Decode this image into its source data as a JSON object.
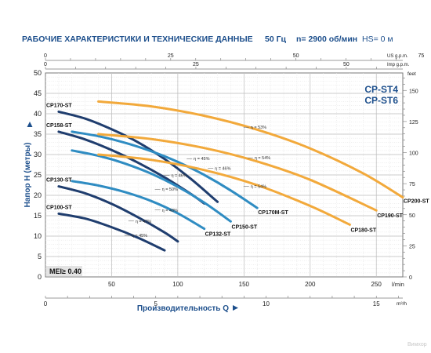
{
  "header": {
    "title": "РАБОЧИЕ ХАРАКТЕРИСТИКИ И ТЕХНИЧЕСКИЕ ДАННЫЕ",
    "frequency": "50 Гц",
    "speed": "n= 2900 об/мин",
    "hs": "HS= 0 м"
  },
  "watermark": "Вимхор",
  "chart_data": {
    "type": "line",
    "model_labels": [
      "CP-ST4",
      "CP-ST6"
    ],
    "xlabel": "Производительность Q",
    "ylabel": "Напор H (метры)",
    "xunit": "l/min",
    "xunit2": "m³/h",
    "ylabel_right": "feet",
    "top_unit_1": "US g.p.m.",
    "top_unit_2": "Imp g.p.m.",
    "mei": "MEI≥ 0.40",
    "xlim": [
      0,
      270
    ],
    "ylim": [
      0,
      50
    ],
    "x_ticks": [
      50,
      100,
      150,
      200,
      250
    ],
    "y_ticks": [
      0,
      5,
      10,
      15,
      20,
      25,
      30,
      35,
      40,
      45,
      50
    ],
    "m3h_ticks": [
      0,
      5,
      10,
      15
    ],
    "us_gpm_ticks": [
      0,
      25,
      50,
      75
    ],
    "imp_gpm_ticks": [
      0,
      25,
      50
    ],
    "feet_ticks": [
      0,
      25,
      50,
      75,
      100,
      125,
      150
    ],
    "colors": {
      "st4": "#1f3d6e",
      "st6": "#2f8cc2",
      "large": "#f2a93b",
      "accent": "#1d4f8c"
    },
    "series": [
      {
        "name": "CP100-ST",
        "color": "#1f3d6e",
        "x": [
          10,
          30,
          50,
          70,
          90
        ],
        "y": [
          15.5,
          14.3,
          12.2,
          9.6,
          6.5
        ]
      },
      {
        "name": "CP130-ST",
        "color": "#1f3d6e",
        "x": [
          10,
          30,
          50,
          70,
          90,
          100
        ],
        "y": [
          22.2,
          20.5,
          17.9,
          14.6,
          10.9,
          8.7
        ]
      },
      {
        "name": "CP158-ST",
        "color": "#1f3d6e",
        "x": [
          10,
          30,
          50,
          70,
          90,
          110,
          120
        ],
        "y": [
          35.6,
          33.7,
          31.1,
          28.0,
          24.4,
          20.3,
          18.0
        ]
      },
      {
        "name": "CP170-ST",
        "color": "#1f3d6e",
        "x": [
          10,
          30,
          50,
          70,
          90,
          110,
          130
        ],
        "y": [
          40.5,
          38.8,
          36.2,
          33.0,
          28.9,
          24.0,
          18.4
        ]
      },
      {
        "name": "CP132-ST",
        "color": "#2f8cc2",
        "x": [
          20,
          40,
          60,
          80,
          100,
          120
        ],
        "y": [
          23.5,
          22.4,
          20.8,
          18.6,
          15.6,
          11.8
        ]
      },
      {
        "name": "CP150-ST",
        "color": "#2f8cc2",
        "x": [
          20,
          40,
          60,
          80,
          100,
          120,
          140
        ],
        "y": [
          31.0,
          29.7,
          27.8,
          25.3,
          22.1,
          18.2,
          13.6
        ]
      },
      {
        "name": "CP170M-ST",
        "color": "#2f8cc2",
        "x": [
          20,
          40,
          60,
          80,
          100,
          120,
          140,
          160
        ],
        "y": [
          35.6,
          34.5,
          32.9,
          30.8,
          28.2,
          25.0,
          21.2,
          16.9
        ]
      },
      {
        "name": "CP180-ST",
        "color": "#f2a93b",
        "x": [
          40,
          80,
          120,
          160,
          200,
          230
        ],
        "y": [
          30.0,
          28.7,
          26.2,
          22.5,
          17.4,
          12.8
        ]
      },
      {
        "name": "CP190-ST",
        "color": "#f2a93b",
        "x": [
          40,
          80,
          120,
          160,
          200,
          250
        ],
        "y": [
          35.0,
          33.8,
          31.6,
          28.3,
          23.8,
          16.3
        ]
      },
      {
        "name": "CP200-ST",
        "color": "#f2a93b",
        "x": [
          40,
          80,
          120,
          160,
          200,
          240,
          270
        ],
        "y": [
          43.0,
          41.8,
          39.5,
          36.1,
          31.5,
          25.4,
          19.5
        ]
      }
    ],
    "efficiency_labels": [
      {
        "text": "η = 45%",
        "x": 65,
        "y": 10
      },
      {
        "text": "η = 47%",
        "x": 68,
        "y": 13.5
      },
      {
        "text": "η = 48%",
        "x": 88,
        "y": 16.2
      },
      {
        "text": "η = 50%",
        "x": 88,
        "y": 21.3
      },
      {
        "text": "η = 46%",
        "x": 95,
        "y": 24.7
      },
      {
        "text": "η = 45%",
        "x": 112,
        "y": 28.8
      },
      {
        "text": "η = 46%",
        "x": 128,
        "y": 26.4
      },
      {
        "text": "η = 54%",
        "x": 155,
        "y": 22.0
      },
      {
        "text": "η = 54%",
        "x": 158,
        "y": 29.0
      },
      {
        "text": "η = 53%",
        "x": 155,
        "y": 36.5
      }
    ]
  }
}
